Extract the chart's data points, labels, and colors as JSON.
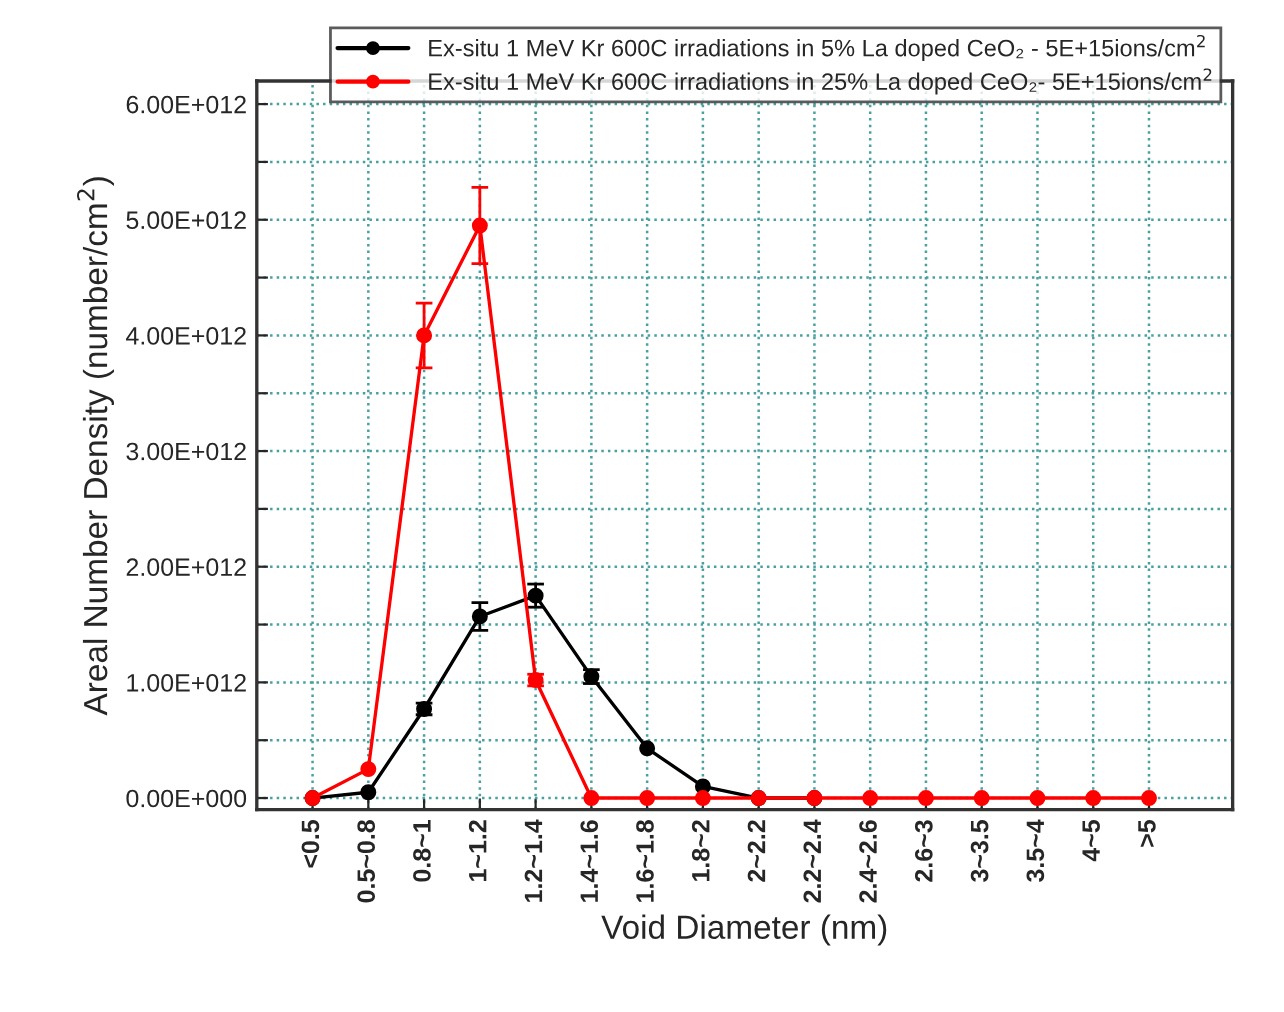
{
  "chart_data": {
    "type": "line",
    "xlabel": "Void Diameter (nm)",
    "ylabel": "Areal Number Density (number/cm$^{2}$)",
    "categories": [
      "<0.5",
      "0.5~0.8",
      "0.8~1",
      "1~1.2",
      "1.2~1.4",
      "1.4~1.6",
      "1.6~1.8",
      "1.8~2",
      "2~2.2",
      "2.2~2.4",
      "2.4~2.6",
      "2.6~3",
      "3~3.5",
      "3.5~4",
      "4~5",
      ">5"
    ],
    "series": [
      {
        "name": "Ex-situ 1 MeV Kr 600C irradiations in 5% La doped CeO₂ - 5E+15ions/cm$^{2}$",
        "color": "#000000",
        "values": [
          0,
          50000000000.0,
          770000000000.0,
          1570000000000.0,
          1750000000000.0,
          1050000000000.0,
          430000000000.0,
          100000000000.0,
          0,
          0,
          null,
          null,
          null,
          null,
          null,
          null
        ],
        "errors": [
          null,
          null,
          50000000000.0,
          120000000000.0,
          100000000000.0,
          60000000000.0,
          null,
          null,
          null,
          null,
          null,
          null,
          null,
          null,
          null,
          null
        ]
      },
      {
        "name": "Ex-situ 1 MeV Kr 600C irradiations in 25% La doped CeO₂- 5E+15ions/cm$^{2}$",
        "color": "#ff0000",
        "values": [
          0,
          250000000000.0,
          4000000000000.0,
          4950000000000.0,
          1020000000000.0,
          0,
          0,
          0,
          0,
          0,
          0,
          0,
          0,
          0,
          0,
          0
        ],
        "errors": [
          null,
          null,
          280000000000.0,
          330000000000.0,
          50000000000.0,
          null,
          null,
          null,
          null,
          null,
          null,
          null,
          null,
          null,
          null,
          null
        ]
      }
    ],
    "ylim": [
      -100000000000.0,
      6200000000000.0
    ],
    "yticks": [
      {
        "value": 0,
        "label": "0.00E+000"
      },
      {
        "value": 500000000000.0,
        "label": null
      },
      {
        "value": 1000000000000.0,
        "label": "1.00E+012"
      },
      {
        "value": 1500000000000.0,
        "label": null
      },
      {
        "value": 2000000000000.0,
        "label": "2.00E+012"
      },
      {
        "value": 2500000000000.0,
        "label": null
      },
      {
        "value": 3000000000000.0,
        "label": "3.00E+012"
      },
      {
        "value": 3500000000000.0,
        "label": null
      },
      {
        "value": 4000000000000.0,
        "label": "4.00E+012"
      },
      {
        "value": 4500000000000.0,
        "label": null
      },
      {
        "value": 5000000000000.0,
        "label": "5.00E+012"
      },
      {
        "value": 5500000000000.0,
        "label": null
      },
      {
        "value": 6000000000000.0,
        "label": "6.00E+012"
      }
    ],
    "grid": true,
    "legend": "top",
    "marker": "circle",
    "line_style": "solid"
  }
}
